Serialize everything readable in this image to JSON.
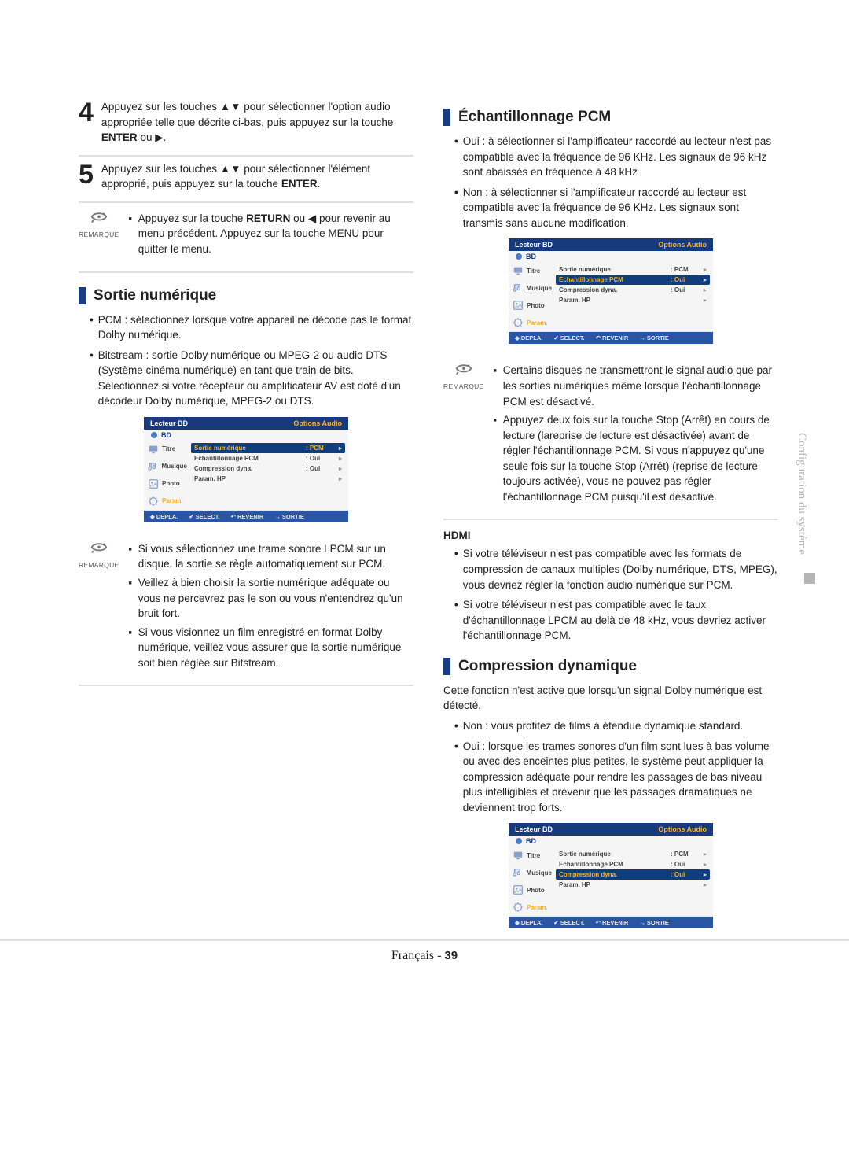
{
  "steps": [
    {
      "num": "4",
      "text": "Appuyez sur les touches ▲▼ pour sélectionner l'option audio appropriée telle que décrite ci-bas, puis appuyez sur la touche <b>ENTER</b> ou ▶."
    },
    {
      "num": "5",
      "text": "Appuyez sur les touches ▲▼ pour sélectionner l'élément approprié, puis appuyez sur la touche <b>ENTER</b>."
    }
  ],
  "note_label": "REMARQUE",
  "note1": [
    "Appuyez sur la touche <b>RETURN</b> ou ◀ pour revenir au menu précédent. Appuyez sur la touche MENU pour quitter le menu."
  ],
  "sortie": {
    "title": "Sortie numérique",
    "bullets": [
      "PCM : sélectionnez lorsque votre appareil ne décode pas le format Dolby numérique.",
      "Bitstream : sortie Dolby numérique ou MPEG-2 ou audio DTS (Système cinéma numérique) en tant que train de bits. Sélectionnez si votre récepteur ou amplificateur AV est doté d'un décodeur Dolby numérique, MPEG-2 ou DTS."
    ],
    "note": [
      "Si vous sélectionnez une trame sonore LPCM sur un disque, la sortie se règle automatiquement sur PCM.",
      "Veillez à bien choisir la sortie numérique adéquate ou vous ne percevrez pas le son ou vous n'entendrez qu'un bruit fort.",
      "Si vous visionnez un film enregistré en format Dolby numérique, veillez vous assurer que la sortie numérique soit bien réglée sur Bitstream."
    ]
  },
  "echant": {
    "title": "Échantillonnage PCM",
    "bullets": [
      "Oui : à sélectionner si l'amplificateur raccordé au lecteur n'est pas compatible avec la fréquence de 96 KHz. Les signaux de 96 kHz sont abaissés en fréquence à 48 kHz",
      "Non : à sélectionner si l'amplificateur raccordé au lecteur est compatible avec la fréquence de 96 KHz. Les signaux sont transmis sans aucune modification."
    ],
    "note": [
      "Certains disques ne transmettront le signal audio que par les sorties numériques même lorsque l'échantillonnage PCM est désactivé.",
      "Appuyez deux fois sur la touche Stop (Arrêt) en cours de lecture (lareprise de lecture est désactivée) avant de régler l'échantillonnage PCM. Si vous n'appuyez qu'une seule fois sur la touche Stop (Arrêt) (reprise de lecture toujours activée), vous ne pouvez pas régler l'échantillonnage PCM puisqu'il est désactivé."
    ]
  },
  "hdmi": {
    "title": "HDMI",
    "bullets": [
      "Si votre téléviseur n'est pas compatible avec les formats de compression de canaux multiples (Dolby numérique, DTS, MPEG), vous devriez régler la fonction audio numérique sur PCM.",
      "Si votre téléviseur n'est pas compatible avec le taux d'échantillonnage LPCM au delà de 48 kHz, vous devriez activer l'échantillonnage PCM."
    ]
  },
  "comp": {
    "title": "Compression dynamique",
    "intro": "Cette fonction n'est active que lorsqu'un signal Dolby numérique est détecté.",
    "bullets": [
      "Non : vous profitez de films à étendue dynamique standard.",
      "Oui : lorsque les trames sonores d'un film sont lues à bas volume ou avec des enceintes plus petites, le système peut appliquer la compression adéquate pour rendre les passages de bas niveau plus intelligibles et prévenir que les passages dramatiques ne deviennent trop forts."
    ]
  },
  "screen": {
    "title_left": "Lecteur BD",
    "title_right": "Options Audio",
    "bd": "BD",
    "side": [
      "Titre",
      "Musique",
      "Photo",
      "Param."
    ],
    "rows": [
      {
        "k": "Sortie numérique",
        "v": ": PCM"
      },
      {
        "k": "Echantillonnage PCM",
        "v": ": Oui"
      },
      {
        "k": "Compression dyna.",
        "v": ": Oui"
      },
      {
        "k": "Param. HP",
        "v": ""
      }
    ],
    "footer": [
      "◆ DEPLA.",
      "✔ SELECT.",
      "↶ REVENIR",
      "→ SORTIE"
    ]
  },
  "side_tab": "Configuration du système",
  "page_lang": "Français",
  "page_sep": " - ",
  "page_num": "39"
}
